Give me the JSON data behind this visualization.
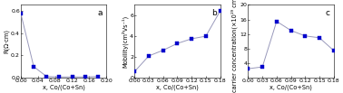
{
  "panel_a": {
    "x": [
      0.0,
      0.03,
      0.06,
      0.09,
      0.12,
      0.15,
      0.18
    ],
    "y": [
      0.57,
      0.1,
      0.012,
      0.008,
      0.008,
      0.008,
      0.012
    ],
    "xlabel": "x, Co/(Co+Sn)",
    "ylabel": "R(Ω·cm)",
    "label": "a",
    "xlim": [
      0.0,
      0.2
    ],
    "ylim": [
      0,
      0.65
    ],
    "yticks": [
      0.0,
      0.2,
      0.4,
      0.6
    ],
    "xticks": [
      0.0,
      0.04,
      0.08,
      0.12,
      0.16,
      0.2
    ]
  },
  "panel_b": {
    "x": [
      0.0,
      0.03,
      0.06,
      0.09,
      0.12,
      0.15,
      0.18
    ],
    "y": [
      0.6,
      2.1,
      2.65,
      3.3,
      3.75,
      4.0,
      6.4
    ],
    "xlabel": "x, Co/(Co+Sn)",
    "ylabel": "Mobility(cm²Vs⁻¹)",
    "label": "b",
    "xlim": [
      0.0,
      0.18
    ],
    "ylim": [
      0,
      7
    ],
    "yticks": [
      0,
      2,
      4,
      6
    ],
    "xticks": [
      0.0,
      0.03,
      0.06,
      0.09,
      0.12,
      0.15,
      0.18
    ]
  },
  "panel_c": {
    "x": [
      0.0,
      0.03,
      0.06,
      0.09,
      0.12,
      0.15,
      0.18
    ],
    "y": [
      2.5,
      3.0,
      15.5,
      13.0,
      11.5,
      11.0,
      7.5
    ],
    "xlabel": "x, Co/(Co+Sn)",
    "ylabel": "carrier concentration(×10¹⁹ cm⁻³)",
    "label": "c",
    "xlim": [
      0.0,
      0.18
    ],
    "ylim": [
      0,
      20
    ],
    "yticks": [
      4,
      8,
      12,
      16,
      20
    ],
    "xticks": [
      0.0,
      0.03,
      0.06,
      0.09,
      0.12,
      0.15,
      0.18
    ]
  },
  "marker_color": "#0000cc",
  "line_color": "#9999bb",
  "marker": "s",
  "markersize": 2.8,
  "linewidth": 0.7,
  "tick_fontsize": 4.5,
  "label_fontsize": 4.8,
  "annot_fontsize": 6.5
}
